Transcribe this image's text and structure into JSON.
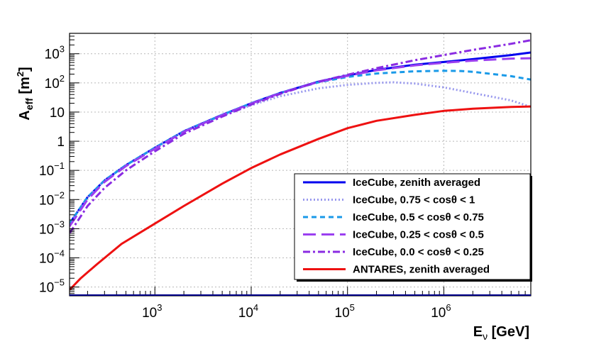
{
  "chart_data": {
    "type": "line",
    "title": "",
    "xlabel": "E",
    "xlabel_sub": "ν",
    "xlabel_unit": " [GeV]",
    "ylabel": "A",
    "ylabel_sub": "eff",
    "ylabel_unit_open": " [m",
    "ylabel_unit_sup": "2",
    "ylabel_unit_close": "]",
    "xscale": "log",
    "yscale": "log",
    "xlim": [
      130,
      8000000
    ],
    "ylim": [
      5e-06,
      5000
    ],
    "grid": true,
    "legend_position": "bottom-right",
    "x_ticks": [
      {
        "value": 1000,
        "base": "10",
        "exp": "3"
      },
      {
        "value": 10000,
        "base": "10",
        "exp": "4"
      },
      {
        "value": 100000,
        "base": "10",
        "exp": "5"
      },
      {
        "value": 1000000,
        "base": "10",
        "exp": "6"
      }
    ],
    "y_ticks": [
      {
        "value": 1e-05,
        "base": "10",
        "exp": "−5"
      },
      {
        "value": 0.0001,
        "base": "10",
        "exp": "−4"
      },
      {
        "value": 0.001,
        "base": "10",
        "exp": "−3"
      },
      {
        "value": 0.01,
        "base": "10",
        "exp": "−2"
      },
      {
        "value": 0.1,
        "base": "10",
        "exp": "−1"
      },
      {
        "value": 1,
        "base": "1",
        "exp": ""
      },
      {
        "value": 10,
        "base": "10",
        "exp": ""
      },
      {
        "value": 100,
        "base": "10",
        "exp": "2"
      },
      {
        "value": 1000,
        "base": "10",
        "exp": "3"
      }
    ],
    "series": [
      {
        "name": "IceCube, zenith averaged",
        "color": "#0000ee",
        "dash": "",
        "width": 3,
        "x": [
          130,
          200,
          300,
          500,
          1000,
          2000,
          5000,
          10000,
          20000,
          50000,
          100000,
          200000,
          500000,
          1000000,
          2000000,
          5000000,
          8000000
        ],
        "y": [
          0.0015,
          0.012,
          0.045,
          0.15,
          0.6,
          2.2,
          8,
          20,
          45,
          110,
          180,
          280,
          420,
          520,
          650,
          900,
          1100
        ]
      },
      {
        "name": "IceCube, 0.75 < cosθ < 1",
        "color": "#9999ee",
        "dash": "2,3",
        "width": 3,
        "x": [
          130,
          200,
          300,
          500,
          1000,
          2000,
          5000,
          10000,
          20000,
          50000,
          100000,
          200000,
          300000,
          500000,
          1000000,
          2000000,
          5000000,
          8000000
        ],
        "y": [
          0.0015,
          0.012,
          0.045,
          0.15,
          0.6,
          2.2,
          7.5,
          17,
          35,
          65,
          85,
          100,
          105,
          95,
          70,
          45,
          25,
          15
        ]
      },
      {
        "name": "IceCube, 0.5 < cosθ < 0.75",
        "color": "#1a9ae8",
        "dash": "7,5",
        "width": 3,
        "x": [
          130,
          200,
          300,
          500,
          1000,
          2000,
          5000,
          10000,
          20000,
          50000,
          100000,
          200000,
          500000,
          1000000,
          1500000,
          2000000,
          5000000,
          8000000
        ],
        "y": [
          0.0015,
          0.012,
          0.045,
          0.15,
          0.6,
          2.2,
          8,
          20,
          45,
          105,
          160,
          210,
          250,
          260,
          255,
          240,
          170,
          130
        ]
      },
      {
        "name": "IceCube, 0.25 < cosθ < 0.5",
        "color": "#9b3ff0",
        "dash": "18,8",
        "width": 3,
        "x": [
          130,
          200,
          300,
          500,
          1000,
          2000,
          5000,
          10000,
          20000,
          50000,
          100000,
          200000,
          500000,
          1000000,
          2000000,
          5000000,
          8000000
        ],
        "y": [
          0.0012,
          0.01,
          0.04,
          0.14,
          0.55,
          2.1,
          7.8,
          19.5,
          44,
          108,
          175,
          270,
          400,
          490,
          580,
          680,
          700
        ]
      },
      {
        "name": "IceCube, 0.0 < cosθ < 0.25",
        "color": "#8a2be2",
        "dash": "10,4,3,4",
        "width": 3,
        "x": [
          130,
          200,
          300,
          500,
          1000,
          2000,
          5000,
          10000,
          20000,
          50000,
          100000,
          200000,
          500000,
          1000000,
          2000000,
          5000000,
          8000000
        ],
        "y": [
          0.0007,
          0.006,
          0.025,
          0.1,
          0.45,
          1.8,
          7,
          18,
          42,
          110,
          190,
          320,
          600,
          900,
          1350,
          2200,
          2900
        ]
      },
      {
        "name": "ANTARES, zenith averaged",
        "color": "#ee1111",
        "dash": "",
        "width": 3,
        "x": [
          130,
          170,
          250,
          450,
          1000,
          2000,
          5000,
          10000,
          20000,
          50000,
          100000,
          200000,
          500000,
          1000000,
          2000000,
          5000000,
          8000000
        ],
        "y": [
          8e-06,
          2e-05,
          6e-05,
          0.0003,
          0.0015,
          0.006,
          0.035,
          0.12,
          0.35,
          1.2,
          2.8,
          5,
          8,
          11,
          13,
          15,
          15.5
        ]
      }
    ]
  }
}
